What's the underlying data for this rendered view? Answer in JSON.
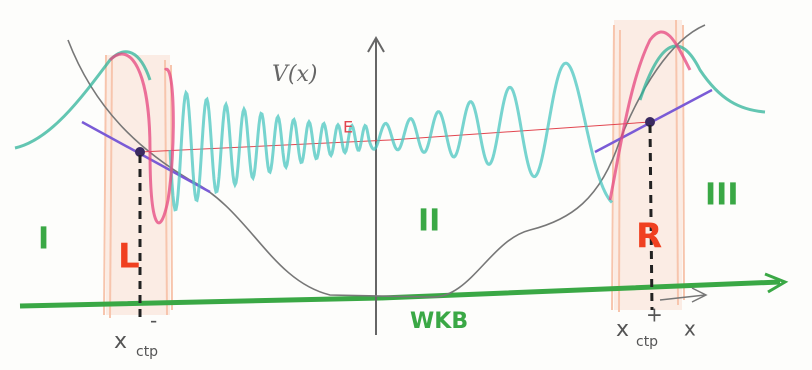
{
  "axis_label": "V(x)",
  "energy_label": "E",
  "regions": [
    "I",
    "II",
    "III"
  ],
  "turning_points": [
    {
      "label": "L",
      "symbol": "x",
      "subscript": "ctp",
      "sign": "-"
    },
    {
      "label": "R",
      "symbol": "x",
      "subscript": "ctp",
      "sign": "+"
    }
  ],
  "method_label": "WKB",
  "x_axis_label": "x"
}
